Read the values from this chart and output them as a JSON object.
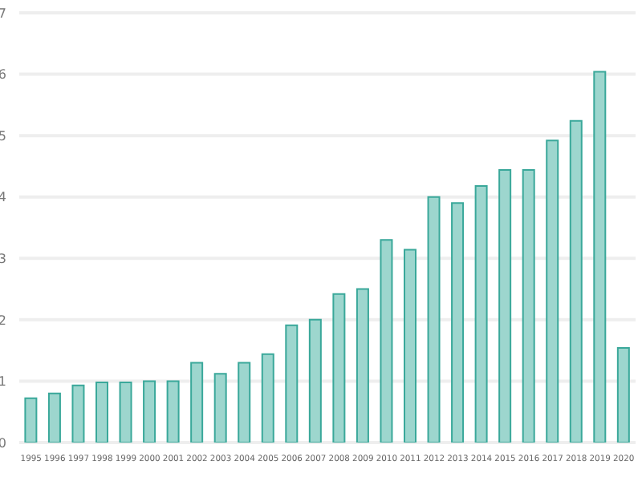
{
  "chart_data": {
    "type": "bar",
    "categories": [
      "1995",
      "1996",
      "1997",
      "1998",
      "1999",
      "2000",
      "2001",
      "2002",
      "2003",
      "2004",
      "2005",
      "2006",
      "2007",
      "2008",
      "2009",
      "2010",
      "2011",
      "2012",
      "2013",
      "2014",
      "2015",
      "2016",
      "2017",
      "2018",
      "2019",
      "2020"
    ],
    "values": [
      0.72,
      0.8,
      0.93,
      0.98,
      0.98,
      1.0,
      1.0,
      1.3,
      1.12,
      1.3,
      1.44,
      1.91,
      2.0,
      2.42,
      2.5,
      3.3,
      3.14,
      4.0,
      3.9,
      4.18,
      4.44,
      4.44,
      4.92,
      5.24,
      6.04,
      1.54
    ],
    "color": "#9dd6ce",
    "ylim": [
      0,
      7
    ],
    "yticks": [
      0,
      1,
      2,
      3,
      4,
      5,
      6,
      7
    ],
    "grid": "y"
  }
}
